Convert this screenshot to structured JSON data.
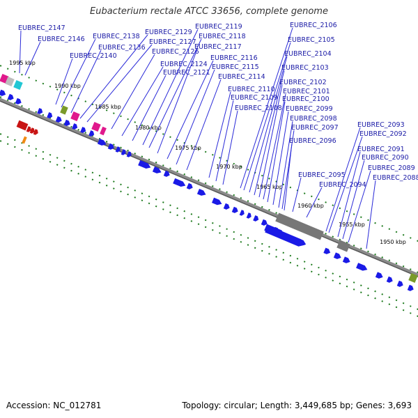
{
  "title": "Eubacterium rectale ATCC 33656, complete genome",
  "footer": {
    "accession": "Accession: NC_012781",
    "topology": "Topology: circular; Length: 3,449,685 bp; Genes: 3,693"
  },
  "kbp_ticks": [
    "1995 kbp",
    "1990 kbp",
    "1985 kbp",
    "1980 kbp",
    "1975 kbp",
    "1970 kbp",
    "1965 kbp",
    "1960 kbp",
    "1955 kbp",
    "1950 kbp"
  ],
  "gene_labels": [
    "EUBREC_2147",
    "EUBREC_2146",
    "EUBREC_2140",
    "EUBREC_2138",
    "EUBREC_2136",
    "EUBREC_2129",
    "EUBREC_2127",
    "EUBREC_2126",
    "EUBREC_2124",
    "EUBREC_2121",
    "EUBREC_2119",
    "EUBREC_2118",
    "EUBREC_2117",
    "EUBREC_2116",
    "EUBREC_2115",
    "EUBREC_2114",
    "EUBREC_2110",
    "EUBREC_2109",
    "EUBREC_2108",
    "EUBREC_2106",
    "EUBREC_2105",
    "EUBREC_2104",
    "EUBREC_2103",
    "EUBREC_2102",
    "EUBREC_2101",
    "EUBREC_2100",
    "EUBREC_2099",
    "EUBREC_2098",
    "EUBREC_2097",
    "EUBREC_2096",
    "EUBREC_2095",
    "EUBREC_2094",
    "EUBREC_2093",
    "EUBREC_2092",
    "EUBREC_2091",
    "EUBREC_2090",
    "EUBREC_2089",
    "EUBREC_2088"
  ],
  "colors": {
    "cds": "#1a1ae6",
    "label_text": "#1a1aa6",
    "leader_line": "#2a2ad8",
    "backbone": "#8a8a8a",
    "tick_dots": "#1d7a1d",
    "trna": "#e0198c",
    "rrna": "#c81414",
    "other_rna": "#7a9a2a",
    "pseudogene": "#777777",
    "misc": "#22c7d4",
    "orange": "#f08a14"
  }
}
